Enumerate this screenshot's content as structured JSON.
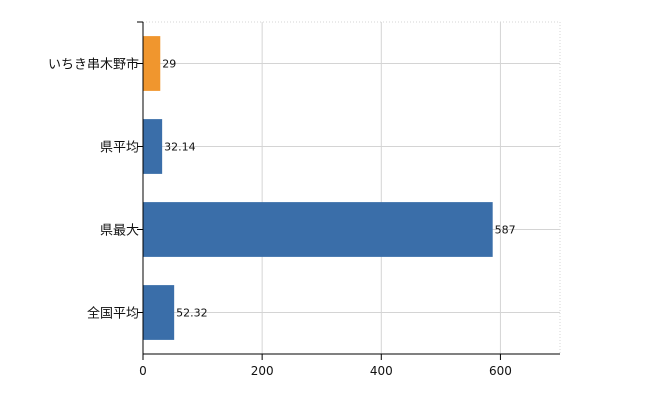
{
  "chart_data": {
    "type": "bar",
    "orientation": "horizontal",
    "categories": [
      "いちき串木野市",
      "県平均",
      "県最大",
      "全国平均"
    ],
    "values": [
      29,
      32.14,
      587,
      52.32
    ],
    "data_labels": [
      "29",
      "32.14",
      "587",
      "52.32"
    ],
    "bar_colors": [
      "#F0962E",
      "#3A6EA9",
      "#3A6EA9",
      "#3A6EA9"
    ],
    "xlim": [
      0,
      700
    ],
    "xticks": [
      0,
      200,
      400,
      600
    ],
    "xtick_labels": [
      "0",
      "200",
      "400",
      "600"
    ],
    "grid": true,
    "grid_color": "#d4d4d4",
    "legend": "none",
    "title": "",
    "xlabel": "",
    "ylabel": ""
  }
}
